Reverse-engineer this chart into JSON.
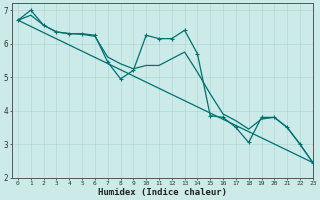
{
  "xlabel": "Humidex (Indice chaleur)",
  "bg_color": "#cceae7",
  "grid_color_major": "#aad4d0",
  "grid_color_minor": "#bbddda",
  "line_color": "#007070",
  "xlim": [
    -0.5,
    23
  ],
  "ylim": [
    2.0,
    7.2
  ],
  "yticks": [
    2,
    3,
    4,
    5,
    6,
    7
  ],
  "xticks": [
    0,
    1,
    2,
    3,
    4,
    5,
    6,
    7,
    8,
    9,
    10,
    11,
    12,
    13,
    14,
    15,
    16,
    17,
    18,
    19,
    20,
    21,
    22,
    23
  ],
  "series_jagged": {
    "x": [
      0,
      1,
      2,
      3,
      4,
      5,
      6,
      7,
      8,
      9,
      10,
      11,
      12,
      13,
      14,
      15,
      16,
      17,
      18,
      19,
      20,
      21,
      22,
      23
    ],
    "y": [
      6.7,
      7.0,
      6.55,
      6.35,
      6.3,
      6.3,
      6.25,
      5.45,
      4.95,
      5.2,
      6.25,
      6.15,
      6.15,
      6.4,
      5.7,
      3.85,
      3.8,
      3.5,
      3.05,
      3.8,
      3.8,
      3.5,
      3.0,
      2.45
    ]
  },
  "series_trend": {
    "x": [
      0,
      23
    ],
    "y": [
      6.7,
      2.45
    ]
  },
  "series_smooth": {
    "x": [
      0,
      1,
      2,
      3,
      4,
      5,
      6,
      7,
      8,
      9,
      10,
      11,
      12,
      13,
      14,
      15,
      16,
      17,
      18,
      19,
      20,
      21,
      22,
      23
    ],
    "y": [
      6.7,
      6.85,
      6.55,
      6.35,
      6.3,
      6.28,
      6.22,
      5.6,
      5.4,
      5.25,
      5.35,
      5.35,
      5.55,
      5.75,
      5.15,
      4.5,
      3.9,
      3.7,
      3.45,
      3.75,
      3.8,
      3.5,
      3.0,
      2.45
    ]
  }
}
